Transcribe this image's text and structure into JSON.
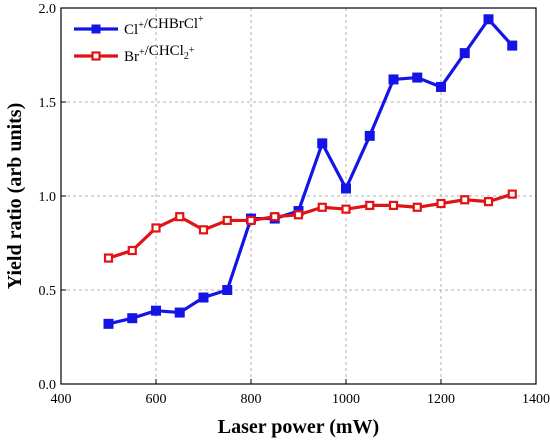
{
  "chart_data": {
    "type": "line",
    "title": "",
    "xlabel": "Laser power (mW)",
    "ylabel": "Yield ratio (arb units)",
    "xlim": [
      400,
      1400
    ],
    "ylim": [
      0.0,
      2.0
    ],
    "xticks": [
      400,
      600,
      800,
      1000,
      1200,
      1400
    ],
    "yticks": [
      0.0,
      0.5,
      1.0,
      1.5,
      2.0
    ],
    "xtick_labels": [
      "400",
      "600",
      "800",
      "1000",
      "1200",
      "1400"
    ],
    "ytick_labels": [
      "0.0",
      "0.5",
      "1.0",
      "1.5",
      "2.0"
    ],
    "grid": "dashed",
    "legend_position": "top-left",
    "x": [
      500,
      550,
      600,
      650,
      700,
      750,
      800,
      850,
      900,
      950,
      1000,
      1050,
      1100,
      1150,
      1200,
      1250,
      1300,
      1350
    ],
    "series": [
      {
        "name": "Cl+/CHBrCl+",
        "legend_parts": [
          {
            "text": "Cl",
            "sup": false
          },
          {
            "text": "+",
            "sup": true
          },
          {
            "text": "/CHBrCl",
            "sup": false
          },
          {
            "text": "+",
            "sup": true
          }
        ],
        "color": "#1414e6",
        "marker": "filled-square",
        "values": [
          0.32,
          0.35,
          0.39,
          0.38,
          0.46,
          0.5,
          0.88,
          0.88,
          0.92,
          1.28,
          1.04,
          1.32,
          1.62,
          1.63,
          1.58,
          1.76,
          1.94,
          1.8
        ]
      },
      {
        "name": "Br+/CHCl2+",
        "legend_parts": [
          {
            "text": "Br",
            "sup": false
          },
          {
            "text": "+",
            "sup": true
          },
          {
            "text": "/CHCl",
            "sup": false
          },
          {
            "text": "2",
            "sub": true
          },
          {
            "text": "+",
            "sup": true
          }
        ],
        "color": "#e01414",
        "marker": "open-square",
        "values": [
          0.67,
          0.71,
          0.83,
          0.89,
          0.82,
          0.87,
          0.87,
          0.89,
          0.9,
          0.94,
          0.93,
          0.95,
          0.95,
          0.94,
          0.96,
          0.98,
          0.97,
          1.01
        ]
      }
    ]
  }
}
